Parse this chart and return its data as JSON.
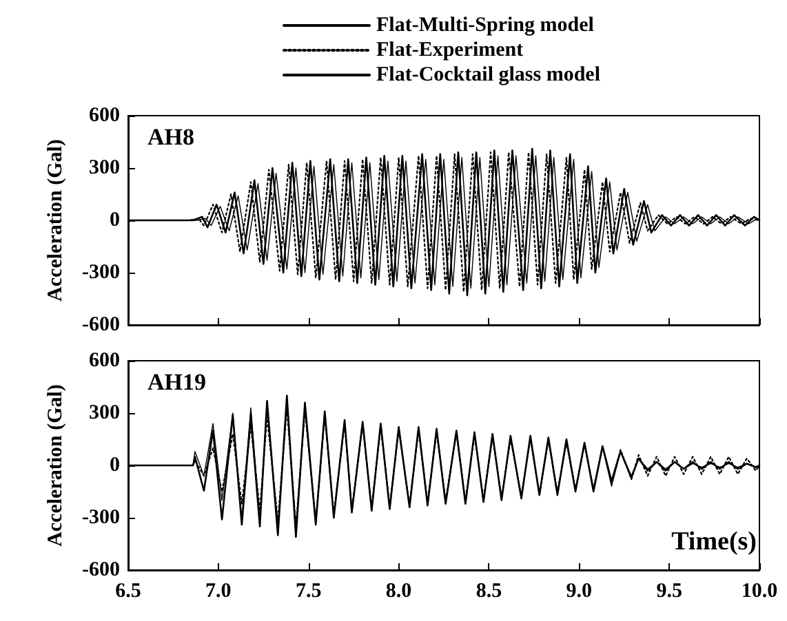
{
  "chart_data": [
    {
      "type": "line",
      "title": "AH8",
      "ylabel": "Acceleration (Gal)",
      "legend": "top",
      "tick_labels": "y",
      "grid": false,
      "xlim": [
        6.5,
        10
      ],
      "xticks": [
        6.5,
        7,
        7.5,
        8,
        8.5,
        9,
        9.5,
        10
      ],
      "ylim": [
        -600,
        600
      ],
      "yticks": [
        -600,
        -300,
        0,
        300,
        600
      ],
      "x": [
        6.5,
        6.86,
        6.91,
        6.94,
        6.99,
        7.04,
        7.09,
        7.14,
        7.2,
        7.25,
        7.3,
        7.36,
        7.41,
        7.46,
        7.51,
        7.56,
        7.62,
        7.67,
        7.72,
        7.77,
        7.82,
        7.87,
        7.92,
        7.97,
        8.02,
        8.07,
        8.13,
        8.18,
        8.23,
        8.28,
        8.33,
        8.38,
        8.43,
        8.48,
        8.53,
        8.58,
        8.63,
        8.69,
        8.74,
        8.79,
        8.84,
        8.89,
        8.95,
        8.99,
        9.05,
        9.09,
        9.15,
        9.19,
        9.25,
        9.3,
        9.36,
        9.4,
        9.46,
        9.51,
        9.56,
        9.61,
        9.66,
        9.71,
        9.76,
        9.81,
        9.86,
        9.92,
        9.97,
        10.0
      ],
      "series": [
        {
          "name": "Flat-Multi-Spring model",
          "color": "#000000",
          "line_style": "solid",
          "values": [
            0,
            0,
            20,
            -40,
            90,
            -70,
            160,
            -190,
            230,
            -250,
            300,
            -300,
            330,
            -320,
            340,
            -340,
            350,
            -350,
            350,
            -360,
            360,
            -370,
            370,
            -380,
            370,
            -390,
            380,
            -400,
            380,
            -420,
            390,
            -430,
            390,
            -420,
            400,
            -410,
            400,
            -400,
            410,
            -390,
            400,
            -380,
            380,
            -360,
            310,
            -300,
            240,
            -190,
            180,
            -140,
            110,
            -70,
            30,
            -30,
            30,
            -30,
            30,
            -30,
            30,
            -30,
            30,
            -30,
            20,
            0
          ]
        },
        {
          "name": "Flat-Experiment",
          "color": "#000000",
          "line_style": "dotted",
          "x": [
            6.5,
            6.84,
            6.89,
            6.92,
            6.97,
            7.02,
            7.07,
            7.12,
            7.18,
            7.23,
            7.28,
            7.34,
            7.39,
            7.44,
            7.49,
            7.54,
            7.6,
            7.65,
            7.7,
            7.75,
            7.8,
            7.85,
            7.9,
            7.95,
            8.0,
            8.05,
            8.11,
            8.16,
            8.21,
            8.26,
            8.31,
            8.36,
            8.41,
            8.46,
            8.51,
            8.56,
            8.61,
            8.67,
            8.72,
            8.77,
            8.82,
            8.87,
            8.93,
            8.97,
            9.03,
            9.07,
            9.13,
            9.17,
            9.23,
            9.28,
            9.34,
            9.38,
            9.44,
            9.49,
            9.54,
            9.59,
            9.64,
            9.69,
            9.74,
            9.79,
            9.84,
            9.9,
            9.95,
            10.0
          ],
          "values": [
            0,
            0,
            10,
            -30,
            90,
            -70,
            150,
            -180,
            220,
            -240,
            290,
            -290,
            320,
            -310,
            330,
            -330,
            340,
            -340,
            340,
            -350,
            350,
            -360,
            360,
            -370,
            360,
            -380,
            370,
            -390,
            370,
            -400,
            380,
            -410,
            380,
            -400,
            390,
            -390,
            390,
            -380,
            390,
            -370,
            380,
            -360,
            360,
            -340,
            290,
            -280,
            220,
            -180,
            160,
            -130,
            100,
            -60,
            30,
            -20,
            20,
            -20,
            20,
            -20,
            20,
            -20,
            20,
            -20,
            10,
            0
          ]
        },
        {
          "name": "Flat-Cocktail glass model",
          "color": "#000000",
          "line_style": "solid",
          "x": [
            6.5,
            6.88,
            6.93,
            6.96,
            7.01,
            7.06,
            7.11,
            7.16,
            7.22,
            7.27,
            7.32,
            7.38,
            7.43,
            7.48,
            7.53,
            7.58,
            7.64,
            7.69,
            7.74,
            7.79,
            7.84,
            7.89,
            7.94,
            7.99,
            8.04,
            8.09,
            8.15,
            8.2,
            8.25,
            8.3,
            8.35,
            8.4,
            8.45,
            8.5,
            8.55,
            8.6,
            8.65,
            8.71,
            8.76,
            8.81,
            8.86,
            8.91,
            8.97,
            9.01,
            9.07,
            9.11,
            9.17,
            9.21,
            9.27,
            9.32,
            9.38,
            9.42,
            9.48,
            9.53,
            9.58,
            9.63,
            9.68,
            9.73,
            9.78,
            9.83,
            9.88,
            9.94,
            9.99,
            10.0
          ],
          "values": [
            0,
            0,
            10,
            -30,
            80,
            -60,
            140,
            -170,
            210,
            -230,
            270,
            -280,
            300,
            -300,
            310,
            -310,
            320,
            -320,
            330,
            -330,
            330,
            -340,
            340,
            -350,
            340,
            -360,
            350,
            -370,
            350,
            -380,
            360,
            -390,
            360,
            -380,
            370,
            -370,
            370,
            -360,
            370,
            -350,
            360,
            -340,
            350,
            -330,
            280,
            -270,
            220,
            -170,
            160,
            -120,
            90,
            -60,
            20,
            -20,
            20,
            -20,
            20,
            -20,
            20,
            -20,
            20,
            -20,
            10,
            0
          ]
        }
      ]
    },
    {
      "type": "line",
      "title": "AH19",
      "ylabel": "Acceleration (Gal)",
      "xlabel": "Time(s)",
      "grid": false,
      "xlim": [
        6.5,
        10
      ],
      "xticks": [
        6.5,
        {
          "value": 7,
          "label": "7.0"
        },
        7.5,
        {
          "value": 8,
          "label": "8.0"
        },
        8.5,
        {
          "value": 9,
          "label": "9.0"
        },
        9.5,
        {
          "value": 10,
          "label": "10.0"
        }
      ],
      "ylim": [
        -600,
        600
      ],
      "yticks": [
        -600,
        -300,
        0,
        300,
        600
      ],
      "x": [
        6.5,
        6.86,
        6.87,
        6.92,
        6.97,
        7.02,
        7.08,
        7.13,
        7.18,
        7.23,
        7.27,
        7.33,
        7.38,
        7.43,
        7.48,
        7.54,
        7.59,
        7.64,
        7.7,
        7.74,
        7.8,
        7.85,
        7.9,
        7.95,
        8.0,
        8.06,
        8.11,
        8.16,
        8.21,
        8.26,
        8.32,
        8.37,
        8.42,
        8.47,
        8.52,
        8.57,
        8.62,
        8.68,
        8.73,
        8.78,
        8.83,
        8.88,
        8.93,
        8.98,
        9.03,
        9.08,
        9.13,
        9.18,
        9.23,
        9.29,
        9.33,
        9.38,
        9.43,
        9.48,
        9.53,
        9.58,
        9.63,
        9.68,
        9.73,
        9.78,
        9.83,
        9.88,
        9.93,
        9.98,
        10.0
      ],
      "series": [
        {
          "color": "#000000",
          "line_style": "solid",
          "values": [
            0,
            0,
            50,
            -145,
            200,
            -310,
            290,
            -340,
            290,
            -350,
            370,
            -400,
            400,
            -410,
            360,
            -340,
            310,
            -300,
            260,
            -270,
            250,
            -260,
            240,
            -250,
            220,
            -240,
            220,
            -230,
            210,
            -220,
            200,
            -220,
            190,
            -210,
            180,
            -200,
            170,
            -190,
            170,
            -170,
            160,
            -170,
            150,
            -150,
            130,
            -150,
            110,
            -90,
            80,
            -70,
            40,
            -30,
            20,
            -30,
            20,
            -20,
            20,
            -20,
            20,
            -20,
            20,
            -20,
            10,
            -10,
            0
          ]
        },
        {
          "color": "#000000",
          "line_style": "dotted",
          "values": [
            0,
            0,
            30,
            -60,
            100,
            -150,
            180,
            -220,
            230,
            -260,
            280,
            -320,
            330,
            -350,
            320,
            -320,
            290,
            -280,
            250,
            -260,
            240,
            -250,
            230,
            -240,
            210,
            -230,
            210,
            -220,
            200,
            -210,
            190,
            -210,
            180,
            -200,
            170,
            -190,
            160,
            -180,
            160,
            -170,
            150,
            -160,
            140,
            -140,
            120,
            -140,
            110,
            -100,
            90,
            -80,
            60,
            -60,
            50,
            -60,
            50,
            -50,
            50,
            -50,
            50,
            -50,
            50,
            -50,
            40,
            -30,
            0
          ]
        },
        {
          "color": "#000000",
          "line_style": "solid",
          "values": [
            0,
            0,
            80,
            -60,
            240,
            -200,
            300,
            -310,
            330,
            -320,
            340,
            -350,
            350,
            -360,
            320,
            -330,
            280,
            -290,
            240,
            -250,
            230,
            -240,
            220,
            -230,
            200,
            -220,
            200,
            -210,
            190,
            -200,
            180,
            -200,
            170,
            -190,
            160,
            -180,
            150,
            -170,
            150,
            -160,
            140,
            -150,
            130,
            -140,
            120,
            -130,
            110,
            -120,
            80,
            -60,
            40,
            -20,
            20,
            -20,
            20,
            -20,
            10,
            -10,
            10,
            -10,
            10,
            -10,
            10,
            -10,
            0
          ]
        }
      ]
    }
  ]
}
